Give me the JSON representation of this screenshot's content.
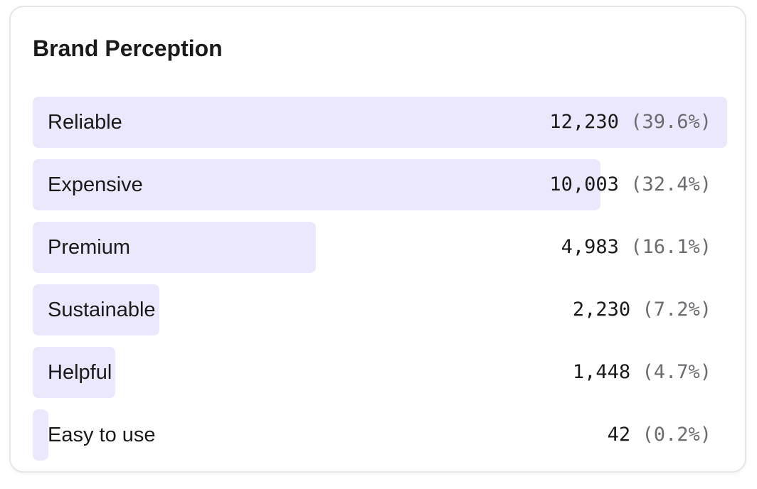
{
  "chart_data": {
    "type": "bar",
    "orientation": "horizontal",
    "title": "Brand Perception",
    "categories": [
      "Reliable",
      "Expensive",
      "Premium",
      "Sustainable",
      "Helpful",
      "Easy to use"
    ],
    "values": [
      12230,
      10003,
      4983,
      2230,
      1448,
      42
    ],
    "value_labels": [
      "12,230",
      "10,003",
      "4,983",
      "2,230",
      "1,448",
      "42"
    ],
    "percent_labels": [
      "(39.6%)",
      "(32.4%)",
      "(16.1%)",
      "(7.2%)",
      "(4.7%)",
      "(0.2%)"
    ],
    "bar_color": "#ebe8fd",
    "grid": false,
    "legend": "none"
  }
}
